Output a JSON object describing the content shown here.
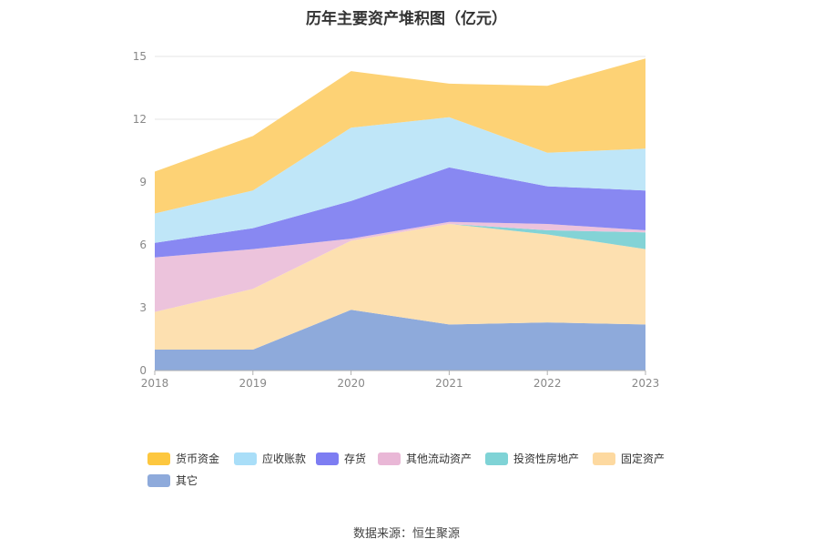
{
  "chart_data": {
    "type": "area",
    "stacked": true,
    "title": "历年主要资产堆积图（亿元）",
    "x": [
      "2018",
      "2019",
      "2020",
      "2021",
      "2022",
      "2023"
    ],
    "ylim": [
      0,
      15
    ],
    "yticks": [
      0,
      3,
      6,
      9,
      12,
      15
    ],
    "grid": true,
    "legend_position": "bottom",
    "series": [
      {
        "name": "其它",
        "color": "#8eaadb",
        "values": [
          1.0,
          1.0,
          2.9,
          2.2,
          2.3,
          2.2
        ]
      },
      {
        "name": "固定资产",
        "color": "#fde0b0",
        "values": [
          1.8,
          2.9,
          3.3,
          4.8,
          4.2,
          3.6
        ]
      },
      {
        "name": "投资性房地产",
        "color": "#83d3d6",
        "values": [
          0.0,
          0.0,
          0.0,
          0.0,
          0.2,
          0.8
        ]
      },
      {
        "name": "其他流动资产",
        "color": "#ecc3dc",
        "values": [
          2.6,
          1.9,
          0.1,
          0.1,
          0.3,
          0.1
        ]
      },
      {
        "name": "存货",
        "color": "#8888f2",
        "values": [
          0.7,
          1.0,
          1.8,
          2.6,
          1.8,
          1.9
        ]
      },
      {
        "name": "应收账款",
        "color": "#bfe6f8",
        "values": [
          1.4,
          1.8,
          3.5,
          2.4,
          1.6,
          2.0
        ]
      },
      {
        "name": "货币资金",
        "color": "#fdd275",
        "values": [
          2.0,
          2.6,
          2.7,
          1.6,
          3.2,
          4.3
        ]
      }
    ]
  },
  "legend": [
    {
      "label": "货币资金",
      "color": "#fdc73f"
    },
    {
      "label": "应收账款",
      "color": "#a9def8"
    },
    {
      "label": "存货",
      "color": "#7d7df2"
    },
    {
      "label": "其他流动资产",
      "color": "#e9b7d6"
    },
    {
      "label": "投资性房地产",
      "color": "#7fd3d6"
    },
    {
      "label": "固定资产",
      "color": "#fdd9a0"
    },
    {
      "label": "其它",
      "color": "#8eaadb"
    }
  ],
  "source_text": "数据来源：恒生聚源"
}
